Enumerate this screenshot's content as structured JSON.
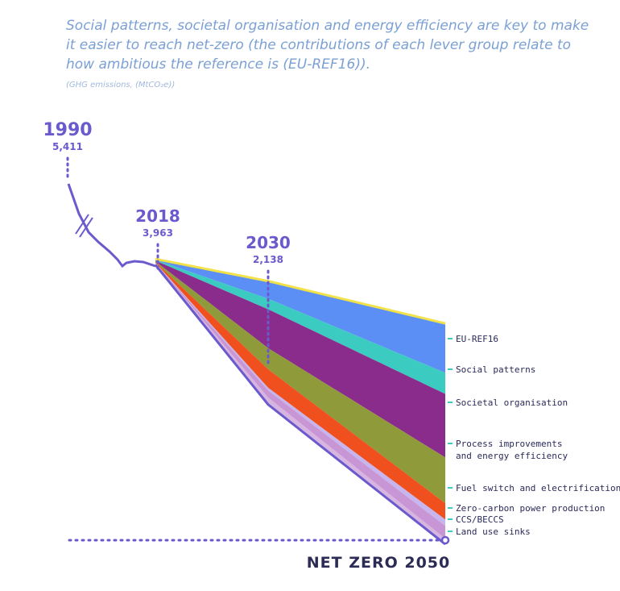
{
  "header": {
    "title": "Social patterns, societal organisation and energy efficiency are key to make it easier to reach net-zero (the contributions of each lever group relate to how ambitious the reference is (EU-REF16)).",
    "subtitle": "(GHG emissions, (MtCO₂e))"
  },
  "chart_data": {
    "type": "area",
    "title": "Social patterns, societal organisation and energy efficiency are key to make it easier to reach net-zero (the contributions of each lever group relate to how ambitious the reference is (EU-REF16)).",
    "ylabel": "GHG emissions, (MtCO₂e)",
    "annotations": [
      {
        "year": "1990",
        "value": "5,411"
      },
      {
        "year": "2018",
        "value": "3,963"
      },
      {
        "year": "2030",
        "value": "2,138"
      }
    ],
    "net_zero_label": "NET ZERO 2050",
    "colors": {
      "accent": "#6a5acd",
      "eu_ref16": "#f2e24a",
      "social_patterns": "#5b8ff5",
      "societal_organisation": "#3ccbc0",
      "process_improvements": "#8a2c8c",
      "fuel_switch": "#8f9a3a",
      "zero_carbon_power": "#f0501e",
      "ccs_beccs": "#c7b5ee",
      "land_use_sinks": "#c896d4"
    },
    "historical": {
      "x": [
        1990,
        1993,
        1996,
        2000,
        2004,
        2008,
        2010,
        2012,
        2014,
        2016,
        2018
      ],
      "y": [
        5411,
        5000,
        4800,
        4700,
        4600,
        4500,
        4330,
        4200,
        4230,
        4100,
        3963
      ]
    },
    "x": [
      2018,
      2030,
      2050
    ],
    "series": [
      {
        "name": "EU-REF16",
        "values": [
          3963,
          3650,
          3050
        ]
      },
      {
        "name": "Social patterns",
        "values": [
          3950,
          3400,
          2350
        ]
      },
      {
        "name": "Societal organisation",
        "values": [
          3940,
          3250,
          2050
        ]
      },
      {
        "name": "Process improvements and energy efficiency",
        "values": [
          3930,
          2700,
          1150
        ]
      },
      {
        "name": "Fuel switch and electrification",
        "values": [
          3920,
          2400,
          500
        ]
      },
      {
        "name": "Zero-carbon power production",
        "values": [
          3910,
          2138,
          270
        ]
      },
      {
        "name": "CCS/BECCS",
        "values": [
          3905,
          2100,
          180
        ]
      },
      {
        "name": "Land use sinks",
        "values": [
          3900,
          2000,
          0
        ]
      }
    ]
  }
}
